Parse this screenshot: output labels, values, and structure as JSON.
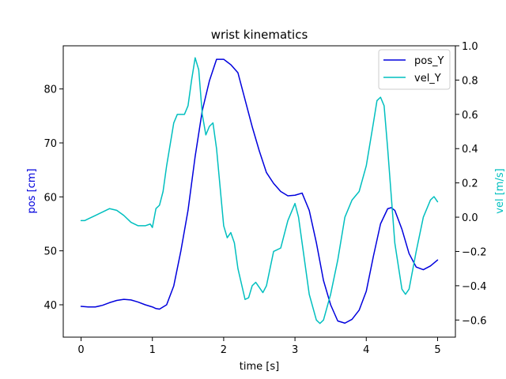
{
  "chart_data": {
    "type": "line",
    "title": "wrist kinematics",
    "xlabel": "time [s]",
    "ylabel_left": "pos [cm]",
    "ylabel_right": "vel [m/s]",
    "xlim": [
      -0.25,
      5.25
    ],
    "ylim_left": [
      34.0,
      88.0
    ],
    "ylim_right": [
      -0.7,
      1.0
    ],
    "xticks": [
      0,
      1,
      2,
      3,
      4,
      5
    ],
    "yticks_left": [
      40,
      50,
      60,
      70,
      80
    ],
    "yticks_right": [
      -0.6,
      -0.4,
      -0.2,
      0.0,
      0.2,
      0.4,
      0.6,
      0.8,
      1.0
    ],
    "ytick_labels_right": [
      "−0.6",
      "−0.4",
      "−0.2",
      "0.0",
      "0.2",
      "0.4",
      "0.6",
      "0.8",
      "1.0"
    ],
    "grid": false,
    "legend_position": "top-right",
    "series": [
      {
        "name": "pos_Y",
        "axis": "left",
        "color": "#0000dd",
        "x": [
          0.0,
          0.1,
          0.2,
          0.3,
          0.4,
          0.5,
          0.6,
          0.7,
          0.8,
          0.9,
          1.0,
          1.05,
          1.1,
          1.2,
          1.3,
          1.4,
          1.5,
          1.6,
          1.7,
          1.8,
          1.9,
          2.0,
          2.05,
          2.1,
          2.2,
          2.3,
          2.4,
          2.5,
          2.6,
          2.7,
          2.8,
          2.9,
          3.0,
          3.1,
          3.2,
          3.3,
          3.4,
          3.5,
          3.6,
          3.7,
          3.8,
          3.9,
          4.0,
          4.1,
          4.2,
          4.3,
          4.35,
          4.4,
          4.5,
          4.6,
          4.7,
          4.8,
          4.9,
          5.0
        ],
        "y": [
          39.7,
          39.6,
          39.6,
          39.9,
          40.4,
          40.8,
          41.0,
          40.9,
          40.5,
          40.0,
          39.6,
          39.3,
          39.2,
          40.0,
          43.5,
          50.0,
          57.5,
          67.5,
          76.0,
          81.5,
          85.5,
          85.5,
          85.0,
          84.5,
          83.0,
          78.0,
          73.0,
          68.5,
          64.5,
          62.5,
          61.0,
          60.2,
          60.3,
          60.7,
          57.5,
          51.5,
          44.5,
          40.0,
          37.0,
          36.6,
          37.3,
          39.0,
          42.5,
          49.0,
          55.0,
          57.8,
          58.0,
          57.5,
          54.0,
          49.5,
          47.0,
          46.5,
          47.2,
          48.3
        ]
      },
      {
        "name": "vel_Y",
        "axis": "right",
        "color": "#00bfbf",
        "x": [
          0.0,
          0.05,
          0.1,
          0.2,
          0.3,
          0.4,
          0.5,
          0.6,
          0.7,
          0.8,
          0.9,
          0.97,
          1.0,
          1.05,
          1.1,
          1.15,
          1.2,
          1.3,
          1.35,
          1.4,
          1.45,
          1.5,
          1.55,
          1.6,
          1.65,
          1.7,
          1.75,
          1.8,
          1.85,
          1.9,
          2.0,
          2.05,
          2.1,
          2.15,
          2.2,
          2.3,
          2.35,
          2.4,
          2.45,
          2.5,
          2.55,
          2.6,
          2.65,
          2.7,
          2.75,
          2.8,
          2.9,
          3.0,
          3.05,
          3.1,
          3.2,
          3.3,
          3.35,
          3.4,
          3.5,
          3.6,
          3.7,
          3.8,
          3.9,
          4.0,
          4.1,
          4.15,
          4.2,
          4.25,
          4.3,
          4.4,
          4.5,
          4.55,
          4.6,
          4.7,
          4.8,
          4.9,
          4.95,
          5.0
        ],
        "y": [
          -0.02,
          -0.02,
          -0.01,
          0.01,
          0.03,
          0.05,
          0.04,
          0.01,
          -0.03,
          -0.05,
          -0.05,
          -0.04,
          -0.06,
          0.05,
          0.07,
          0.15,
          0.3,
          0.55,
          0.6,
          0.6,
          0.6,
          0.65,
          0.8,
          0.93,
          0.86,
          0.6,
          0.48,
          0.53,
          0.55,
          0.4,
          -0.05,
          -0.12,
          -0.09,
          -0.15,
          -0.3,
          -0.48,
          -0.47,
          -0.4,
          -0.38,
          -0.41,
          -0.44,
          -0.4,
          -0.3,
          -0.2,
          -0.19,
          -0.18,
          -0.02,
          0.08,
          0.0,
          -0.15,
          -0.45,
          -0.6,
          -0.62,
          -0.6,
          -0.45,
          -0.25,
          0.0,
          0.1,
          0.15,
          0.3,
          0.55,
          0.68,
          0.7,
          0.65,
          0.4,
          -0.15,
          -0.42,
          -0.45,
          -0.42,
          -0.2,
          0.0,
          0.1,
          0.12,
          0.09
        ]
      }
    ]
  }
}
